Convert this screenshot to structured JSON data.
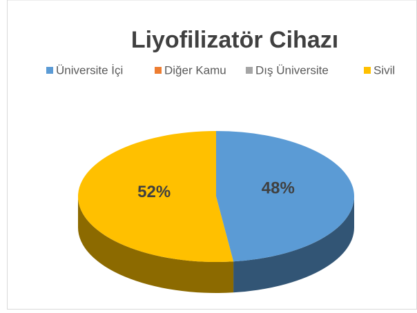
{
  "chart_data": {
    "type": "pie",
    "title": "Liyofilizatör Cihazı",
    "categories": [
      "Üniversite İçi",
      "Diğer Kamu",
      "Dış Üniversite",
      "Sivil"
    ],
    "values": [
      48,
      0,
      0,
      52
    ],
    "value_labels": [
      "48%",
      null,
      null,
      "52%"
    ],
    "colors": [
      "#5b9bd5",
      "#ed7d31",
      "#a5a5a5",
      "#ffc000"
    ],
    "legend": "top"
  }
}
